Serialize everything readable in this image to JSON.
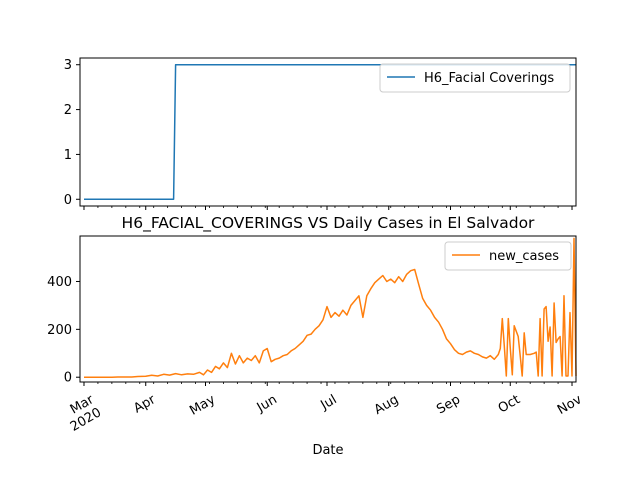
{
  "chart_data": [
    {
      "type": "line",
      "title": "",
      "xlabel": "",
      "ylabel": "",
      "ylim": [
        -0.15,
        3.15
      ],
      "yticks": [
        0,
        1,
        2,
        3
      ],
      "legend": "upper right",
      "series": [
        {
          "name": "H6_Facial Coverings",
          "color": "#1f77b4",
          "points": [
            [
              "2020-03-01",
              0
            ],
            [
              "2020-04-15",
              0
            ],
            [
              "2020-04-16",
              3
            ],
            [
              "2020-11-03",
              3
            ]
          ]
        }
      ]
    },
    {
      "type": "line",
      "title": "H6_FACIAL_COVERINGS VS Daily Cases in El Salvador",
      "xlabel": "Date",
      "ylabel": "",
      "ylim": [
        -20,
        590
      ],
      "yticks": [
        0,
        200,
        400
      ],
      "legend": "upper right",
      "series": [
        {
          "name": "new_cases",
          "color": "#ff7f0e",
          "points": [
            [
              "2020-03-01",
              0
            ],
            [
              "2020-03-15",
              0
            ],
            [
              "2020-03-18",
              1
            ],
            [
              "2020-03-25",
              1
            ],
            [
              "2020-03-28",
              3
            ],
            [
              "2020-04-01",
              4
            ],
            [
              "2020-04-04",
              8
            ],
            [
              "2020-04-07",
              5
            ],
            [
              "2020-04-10",
              12
            ],
            [
              "2020-04-13",
              9
            ],
            [
              "2020-04-16",
              15
            ],
            [
              "2020-04-19",
              10
            ],
            [
              "2020-04-22",
              14
            ],
            [
              "2020-04-25",
              12
            ],
            [
              "2020-04-28",
              20
            ],
            [
              "2020-04-30",
              10
            ],
            [
              "2020-05-02",
              30
            ],
            [
              "2020-05-04",
              20
            ],
            [
              "2020-05-06",
              45
            ],
            [
              "2020-05-08",
              35
            ],
            [
              "2020-05-10",
              60
            ],
            [
              "2020-05-12",
              40
            ],
            [
              "2020-05-14",
              100
            ],
            [
              "2020-05-16",
              55
            ],
            [
              "2020-05-18",
              90
            ],
            [
              "2020-05-20",
              60
            ],
            [
              "2020-05-22",
              80
            ],
            [
              "2020-05-24",
              70
            ],
            [
              "2020-05-26",
              90
            ],
            [
              "2020-05-28",
              60
            ],
            [
              "2020-05-30",
              110
            ],
            [
              "2020-06-01",
              120
            ],
            [
              "2020-06-03",
              65
            ],
            [
              "2020-06-05",
              75
            ],
            [
              "2020-06-07",
              80
            ],
            [
              "2020-06-09",
              90
            ],
            [
              "2020-06-11",
              95
            ],
            [
              "2020-06-13",
              110
            ],
            [
              "2020-06-15",
              120
            ],
            [
              "2020-06-17",
              135
            ],
            [
              "2020-06-19",
              150
            ],
            [
              "2020-06-21",
              175
            ],
            [
              "2020-06-23",
              180
            ],
            [
              "2020-06-25",
              200
            ],
            [
              "2020-06-27",
              215
            ],
            [
              "2020-06-29",
              240
            ],
            [
              "2020-07-01",
              295
            ],
            [
              "2020-07-03",
              250
            ],
            [
              "2020-07-05",
              270
            ],
            [
              "2020-07-07",
              255
            ],
            [
              "2020-07-09",
              280
            ],
            [
              "2020-07-11",
              260
            ],
            [
              "2020-07-13",
              300
            ],
            [
              "2020-07-15",
              320
            ],
            [
              "2020-07-17",
              340
            ],
            [
              "2020-07-19",
              250
            ],
            [
              "2020-07-21",
              340
            ],
            [
              "2020-07-23",
              370
            ],
            [
              "2020-07-25",
              395
            ],
            [
              "2020-07-27",
              410
            ],
            [
              "2020-07-29",
              425
            ],
            [
              "2020-07-31",
              400
            ],
            [
              "2020-08-02",
              410
            ],
            [
              "2020-08-04",
              395
            ],
            [
              "2020-08-06",
              420
            ],
            [
              "2020-08-08",
              400
            ],
            [
              "2020-08-10",
              430
            ],
            [
              "2020-08-12",
              445
            ],
            [
              "2020-08-14",
              450
            ],
            [
              "2020-08-16",
              390
            ],
            [
              "2020-08-18",
              330
            ],
            [
              "2020-08-20",
              300
            ],
            [
              "2020-08-22",
              280
            ],
            [
              "2020-08-24",
              250
            ],
            [
              "2020-08-26",
              230
            ],
            [
              "2020-08-28",
              200
            ],
            [
              "2020-08-30",
              160
            ],
            [
              "2020-09-01",
              140
            ],
            [
              "2020-09-03",
              115
            ],
            [
              "2020-09-05",
              100
            ],
            [
              "2020-09-07",
              95
            ],
            [
              "2020-09-09",
              105
            ],
            [
              "2020-09-11",
              110
            ],
            [
              "2020-09-13",
              100
            ],
            [
              "2020-09-15",
              95
            ],
            [
              "2020-09-17",
              85
            ],
            [
              "2020-09-19",
              80
            ],
            [
              "2020-09-21",
              90
            ],
            [
              "2020-09-23",
              75
            ],
            [
              "2020-09-25",
              95
            ],
            [
              "2020-09-26",
              120
            ],
            [
              "2020-09-27",
              245
            ],
            [
              "2020-09-28",
              130
            ],
            [
              "2020-09-29",
              5
            ],
            [
              "2020-09-30",
              245
            ],
            [
              "2020-10-01",
              120
            ],
            [
              "2020-10-02",
              10
            ],
            [
              "2020-10-03",
              215
            ],
            [
              "2020-10-05",
              170
            ],
            [
              "2020-10-06",
              90
            ],
            [
              "2020-10-07",
              5
            ],
            [
              "2020-10-08",
              185
            ],
            [
              "2020-10-09",
              95
            ],
            [
              "2020-10-11",
              95
            ],
            [
              "2020-10-13",
              100
            ],
            [
              "2020-10-14",
              105
            ],
            [
              "2020-10-15",
              5
            ],
            [
              "2020-10-16",
              245
            ],
            [
              "2020-10-17",
              5
            ],
            [
              "2020-10-18",
              285
            ],
            [
              "2020-10-19",
              295
            ],
            [
              "2020-10-20",
              150
            ],
            [
              "2020-10-21",
              210
            ],
            [
              "2020-10-22",
              5
            ],
            [
              "2020-10-23",
              310
            ],
            [
              "2020-10-24",
              145
            ],
            [
              "2020-10-25",
              160
            ],
            [
              "2020-10-26",
              170
            ],
            [
              "2020-10-27",
              5
            ],
            [
              "2020-10-28",
              340
            ],
            [
              "2020-10-29",
              5
            ],
            [
              "2020-10-30",
              5
            ],
            [
              "2020-10-31",
              270
            ],
            [
              "2020-11-01",
              5
            ],
            [
              "2020-11-02",
              580
            ],
            [
              "2020-11-03",
              5
            ]
          ]
        }
      ]
    }
  ],
  "x_axis": {
    "range": [
      "2020-02-28",
      "2020-11-03"
    ],
    "ticks": [
      {
        "date": "2020-03-01",
        "label": "Mar",
        "sublabel": "2020"
      },
      {
        "date": "2020-04-01",
        "label": "Apr"
      },
      {
        "date": "2020-05-01",
        "label": "May"
      },
      {
        "date": "2020-06-01",
        "label": "Jun"
      },
      {
        "date": "2020-07-01",
        "label": "Jul"
      },
      {
        "date": "2020-08-01",
        "label": "Aug"
      },
      {
        "date": "2020-09-01",
        "label": "Sep"
      },
      {
        "date": "2020-10-01",
        "label": "Oct"
      },
      {
        "date": "2020-11-01",
        "label": "Nov"
      }
    ]
  }
}
